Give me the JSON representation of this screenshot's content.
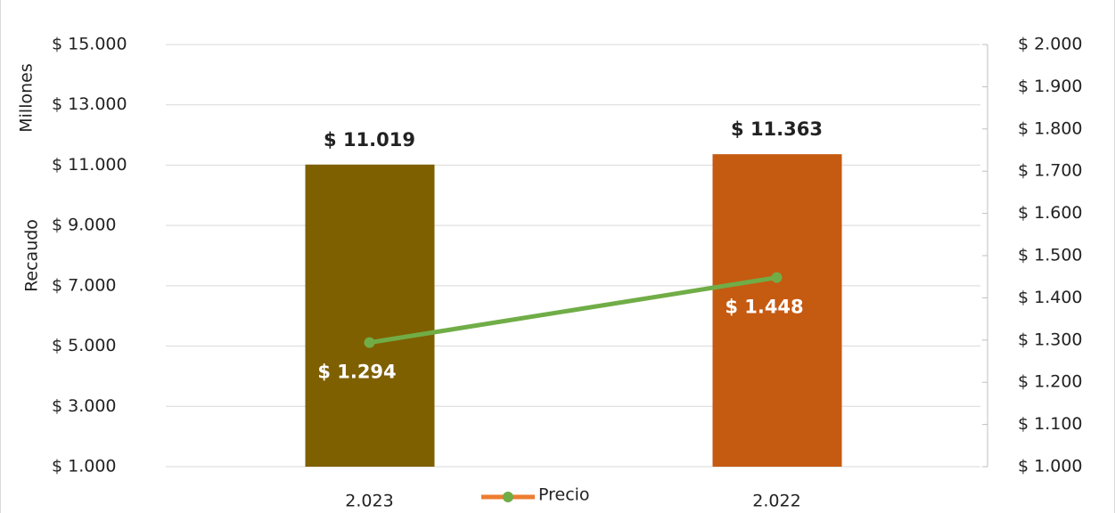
{
  "chart_data": {
    "type": "combo",
    "y_label": "Recaudo",
    "y_unit_label": "Millones",
    "categories": [
      "2.023",
      "2.022"
    ],
    "series": [
      {
        "type": "bar",
        "colors": [
          "#7f6000",
          "#c55a11"
        ],
        "values": [
          11019,
          11363
        ],
        "value_labels": [
          "$ 11.019",
          "$ 11.363"
        ]
      },
      {
        "type": "line",
        "name": "Precio",
        "axis": "y2",
        "color": "#70ad47",
        "legend_line_color": "#ed7d31",
        "values": [
          1294,
          1448
        ],
        "value_labels": [
          "$ 1.294",
          "$ 1.448"
        ]
      }
    ],
    "ylim": [
      1000,
      15000
    ],
    "yticks": [
      {
        "value": 1000,
        "label": "$ 1.000"
      },
      {
        "value": 3000,
        "label": "$ 3.000"
      },
      {
        "value": 5000,
        "label": "$ 5.000"
      },
      {
        "value": 7000,
        "label": "$ 7.000"
      },
      {
        "value": 9000,
        "label": "$ 9.000"
      },
      {
        "value": 11000,
        "label": "$ 11.000"
      },
      {
        "value": 13000,
        "label": "$ 13.000"
      },
      {
        "value": 15000,
        "label": "$ 15.000"
      }
    ],
    "y2lim": [
      1000,
      2000
    ],
    "y2ticks": [
      {
        "value": 1000,
        "label": "$ 1.000"
      },
      {
        "value": 1100,
        "label": "$ 1.100"
      },
      {
        "value": 1200,
        "label": "$ 1.200"
      },
      {
        "value": 1300,
        "label": "$ 1.300"
      },
      {
        "value": 1400,
        "label": "$ 1.400"
      },
      {
        "value": 1500,
        "label": "$ 1.500"
      },
      {
        "value": 1600,
        "label": "$ 1.600"
      },
      {
        "value": 1700,
        "label": "$ 1.700"
      },
      {
        "value": 1800,
        "label": "$ 1.800"
      },
      {
        "value": 1900,
        "label": "$ 1.900"
      },
      {
        "value": 2000,
        "label": "$ 2.000"
      }
    ],
    "grid": true
  }
}
